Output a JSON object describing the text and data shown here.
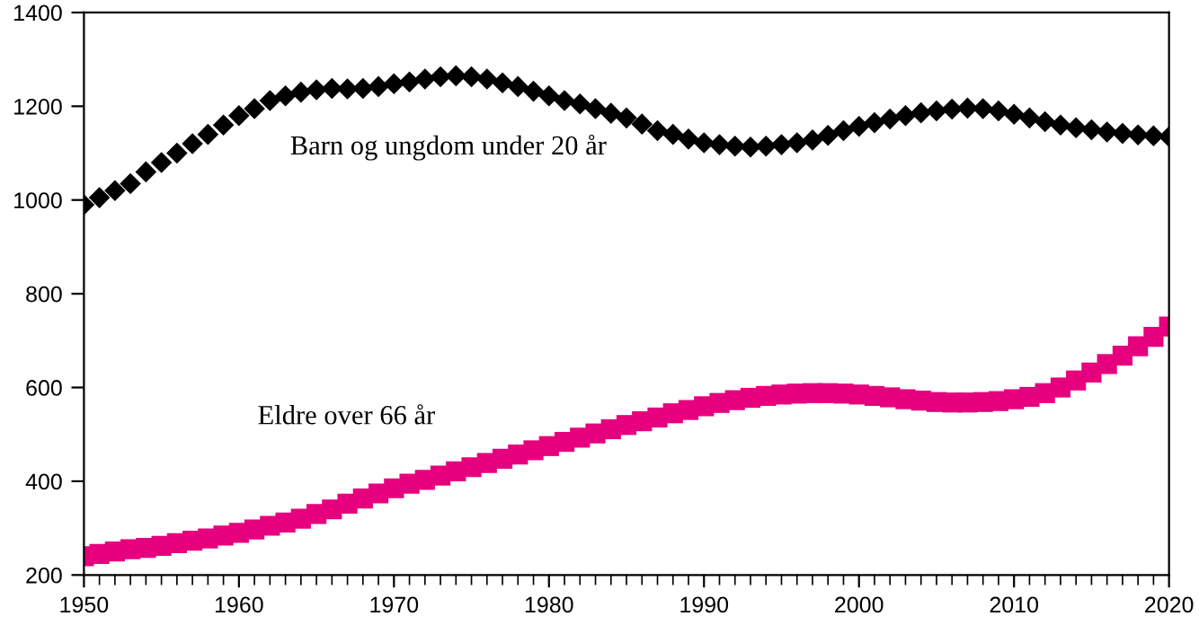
{
  "chart_data": {
    "type": "scatter",
    "x": [
      1950,
      1951,
      1952,
      1953,
      1954,
      1955,
      1956,
      1957,
      1958,
      1959,
      1960,
      1961,
      1962,
      1963,
      1964,
      1965,
      1966,
      1967,
      1968,
      1969,
      1970,
      1971,
      1972,
      1973,
      1974,
      1975,
      1976,
      1977,
      1978,
      1979,
      1980,
      1981,
      1982,
      1983,
      1984,
      1985,
      1986,
      1987,
      1988,
      1989,
      1990,
      1991,
      1992,
      1993,
      1994,
      1995,
      1996,
      1997,
      1998,
      1999,
      2000,
      2001,
      2002,
      2003,
      2004,
      2005,
      2006,
      2007,
      2008,
      2009,
      2010,
      2011,
      2012,
      2013,
      2014,
      2015,
      2016,
      2017,
      2018,
      2019,
      2020
    ],
    "series": [
      {
        "name": "Barn og ungdom under 20 år",
        "color": "#000000",
        "marker": "diamond",
        "values": [
          990,
          1005,
          1020,
          1035,
          1060,
          1080,
          1100,
          1120,
          1140,
          1160,
          1180,
          1195,
          1212,
          1222,
          1230,
          1235,
          1238,
          1237,
          1238,
          1242,
          1248,
          1252,
          1258,
          1263,
          1265,
          1263,
          1258,
          1250,
          1242,
          1232,
          1222,
          1212,
          1205,
          1195,
          1185,
          1175,
          1162,
          1148,
          1140,
          1130,
          1122,
          1118,
          1115,
          1113,
          1115,
          1118,
          1122,
          1128,
          1138,
          1148,
          1157,
          1165,
          1173,
          1180,
          1186,
          1190,
          1194,
          1196,
          1195,
          1190,
          1183,
          1175,
          1167,
          1160,
          1154,
          1150,
          1145,
          1142,
          1139,
          1137,
          1135
        ]
      },
      {
        "name": "Eldre over 66 år",
        "color": "#e6007e",
        "marker": "square",
        "values": [
          240,
          245,
          250,
          255,
          258,
          262,
          268,
          273,
          278,
          284,
          290,
          297,
          305,
          312,
          320,
          330,
          340,
          352,
          363,
          374,
          385,
          395,
          403,
          412,
          421,
          430,
          439,
          448,
          457,
          466,
          475,
          484,
          493,
          502,
          511,
          520,
          528,
          536,
          545,
          552,
          560,
          567,
          573,
          578,
          582,
          585,
          587,
          588,
          588,
          587,
          585,
          582,
          579,
          575,
          572,
          569,
          568,
          568,
          569,
          571,
          575,
          580,
          588,
          600,
          615,
          632,
          650,
          668,
          688,
          708,
          730
        ]
      }
    ],
    "xlim": [
      1950,
      2020
    ],
    "xticks": [
      1950,
      1960,
      1970,
      1980,
      1990,
      2000,
      2010,
      2020
    ],
    "ylim": [
      200,
      1400
    ],
    "yticks": [
      200,
      400,
      600,
      800,
      1000,
      1200,
      1400
    ],
    "grid": false,
    "legend": false
  }
}
